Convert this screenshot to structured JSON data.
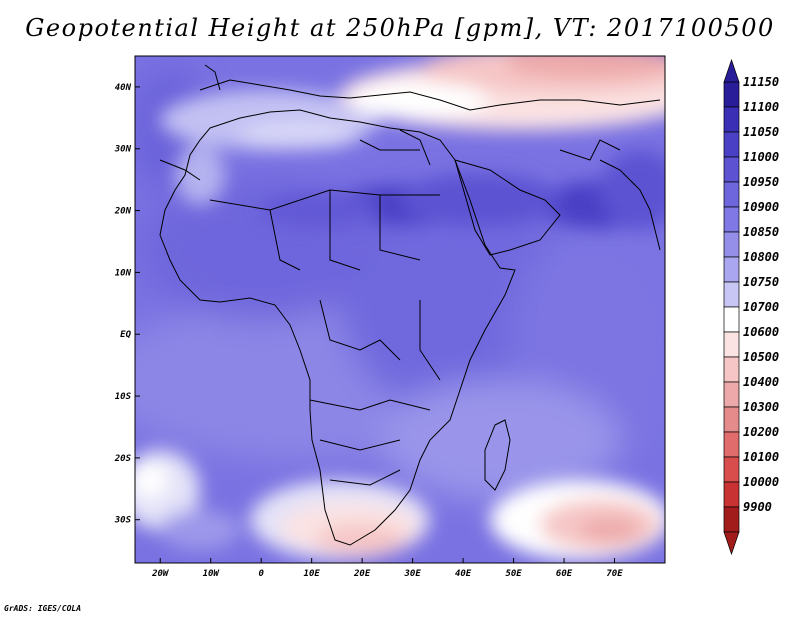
{
  "title": "Geopotential Height at 250hPa [gpm], VT: 2017100500",
  "credit": "GrADS: IGES/COLA",
  "map": {
    "lon_range": [
      -25,
      80
    ],
    "lat_range": [
      -37,
      45
    ],
    "lon_ticks": [
      {
        "value": -20,
        "label": "20W"
      },
      {
        "value": -10,
        "label": "10W"
      },
      {
        "value": 0,
        "label": "0"
      },
      {
        "value": 10,
        "label": "10E"
      },
      {
        "value": 20,
        "label": "20E"
      },
      {
        "value": 30,
        "label": "30E"
      },
      {
        "value": 40,
        "label": "40E"
      },
      {
        "value": 50,
        "label": "50E"
      },
      {
        "value": 60,
        "label": "60E"
      },
      {
        "value": 70,
        "label": "70E"
      }
    ],
    "lat_ticks": [
      {
        "value": 40,
        "label": "40N"
      },
      {
        "value": 30,
        "label": "30N"
      },
      {
        "value": 20,
        "label": "20N"
      },
      {
        "value": 10,
        "label": "10N"
      },
      {
        "value": 0,
        "label": "EQ"
      },
      {
        "value": -10,
        "label": "10S"
      },
      {
        "value": -20,
        "label": "20S"
      },
      {
        "value": -30,
        "label": "30S"
      }
    ]
  },
  "colorbar": {
    "labels": [
      "11150",
      "11100",
      "11050",
      "11000",
      "10950",
      "10900",
      "10850",
      "10800",
      "10750",
      "10700",
      "10600",
      "10500",
      "10400",
      "10300",
      "10200",
      "10100",
      "10000",
      "9900"
    ],
    "colors": [
      "#2a1d99",
      "#3a2fb5",
      "#4a40c6",
      "#5c52d2",
      "#6e66dc",
      "#8078e4",
      "#958fea",
      "#aaa6ef",
      "#c7c6f4",
      "#ffffff",
      "#fbe3e3",
      "#f6c6c6",
      "#eda9a9",
      "#e58b8b",
      "#e06c6c",
      "#d94d4d",
      "#c83232",
      "#a31c1c"
    ]
  }
}
